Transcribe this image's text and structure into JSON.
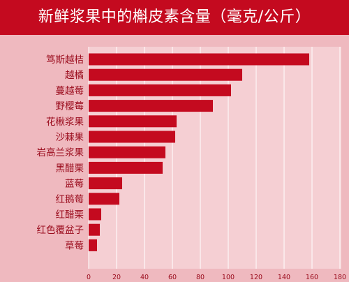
{
  "title": "新鲜浆果中的槲皮素含量（毫克/公斤）",
  "colors": {
    "header_bg": "#c40a1f",
    "bar": "#c40a1f",
    "background": "#efb9bf",
    "plot_area": "#f5cfd3",
    "gridline": "#ffffff",
    "label_text": "#9a0b1c"
  },
  "chart_data": {
    "type": "bar",
    "orientation": "horizontal",
    "title": "新鲜浆果中的槲皮素含量（毫克/公斤）",
    "categories": [
      "笃斯越桔",
      "越橘",
      "蔓越莓",
      "野樱莓",
      "花楸浆果",
      "沙棘果",
      "岩高兰浆果",
      "黑醋栗",
      "蓝莓",
      "红鹅莓",
      "红醋栗",
      "红色覆盆子",
      "草莓"
    ],
    "values": [
      158,
      110,
      102,
      89,
      63,
      62,
      55,
      53,
      24,
      22,
      9,
      8,
      6
    ],
    "xlim": [
      0,
      180
    ],
    "xticks": [
      0,
      20,
      40,
      60,
      80,
      100,
      120,
      140,
      160,
      180
    ],
    "grid": "vertical",
    "legend": "none"
  }
}
